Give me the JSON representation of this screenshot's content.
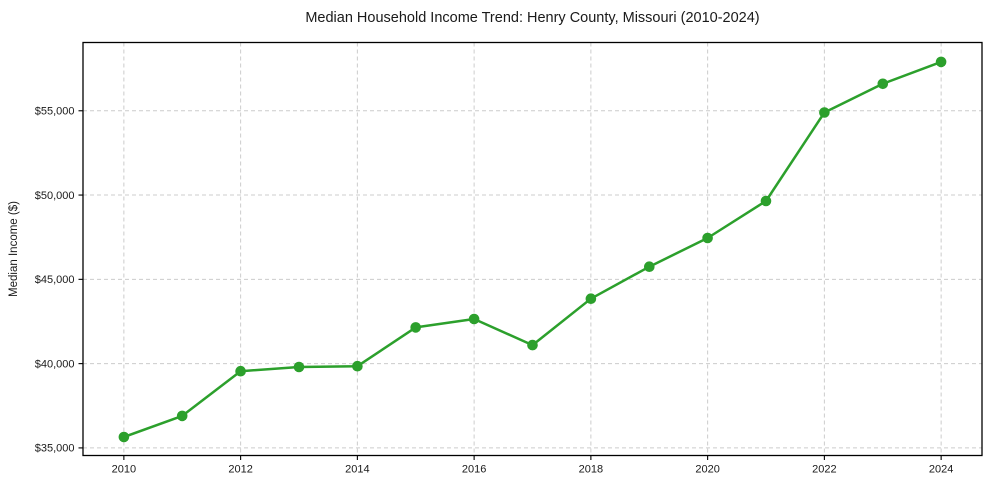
{
  "figure": {
    "title": "Median Household Income Trend: Henry County, Missouri (2010-2024)",
    "ylabel": "Median Income ($)"
  },
  "chart_data": {
    "type": "line",
    "title": "Median Household Income Trend: Henry County, Missouri (2010-2024)",
    "xlabel": "",
    "ylabel": "Median Income ($)",
    "series": [
      {
        "name": "Median household income",
        "x": [
          2010,
          2011,
          2012,
          2013,
          2014,
          2015,
          2016,
          2017,
          2018,
          2019,
          2020,
          2021,
          2022,
          2023,
          2024
        ],
        "values": [
          35650,
          36900,
          39550,
          39800,
          39850,
          42150,
          42650,
          41100,
          43850,
          45750,
          47450,
          49650,
          54900,
          56600,
          57900
        ]
      }
    ],
    "xlim": [
      2009.3,
      2024.7
    ],
    "ylim": [
      34550,
      59050
    ],
    "xticks": [
      2010,
      2012,
      2014,
      2016,
      2018,
      2020,
      2022,
      2024
    ],
    "xtick_labels": [
      "2010",
      "2012",
      "2014",
      "2016",
      "2018",
      "2020",
      "2022",
      "2024"
    ],
    "yticks": [
      35000,
      40000,
      45000,
      50000,
      55000
    ],
    "ytick_labels": [
      "$35,000",
      "$40,000",
      "$45,000",
      "$50,000",
      "$55,000"
    ],
    "grid": true,
    "grid_style": "dashed",
    "legend": false,
    "line_color": "#2ca02c",
    "marker": "circle",
    "marker_color": "#2ca02c",
    "grid_color": "#cccccc",
    "axis_color": "#000000",
    "text_color": "#1a1a1a",
    "background_color": "#ffffff"
  }
}
